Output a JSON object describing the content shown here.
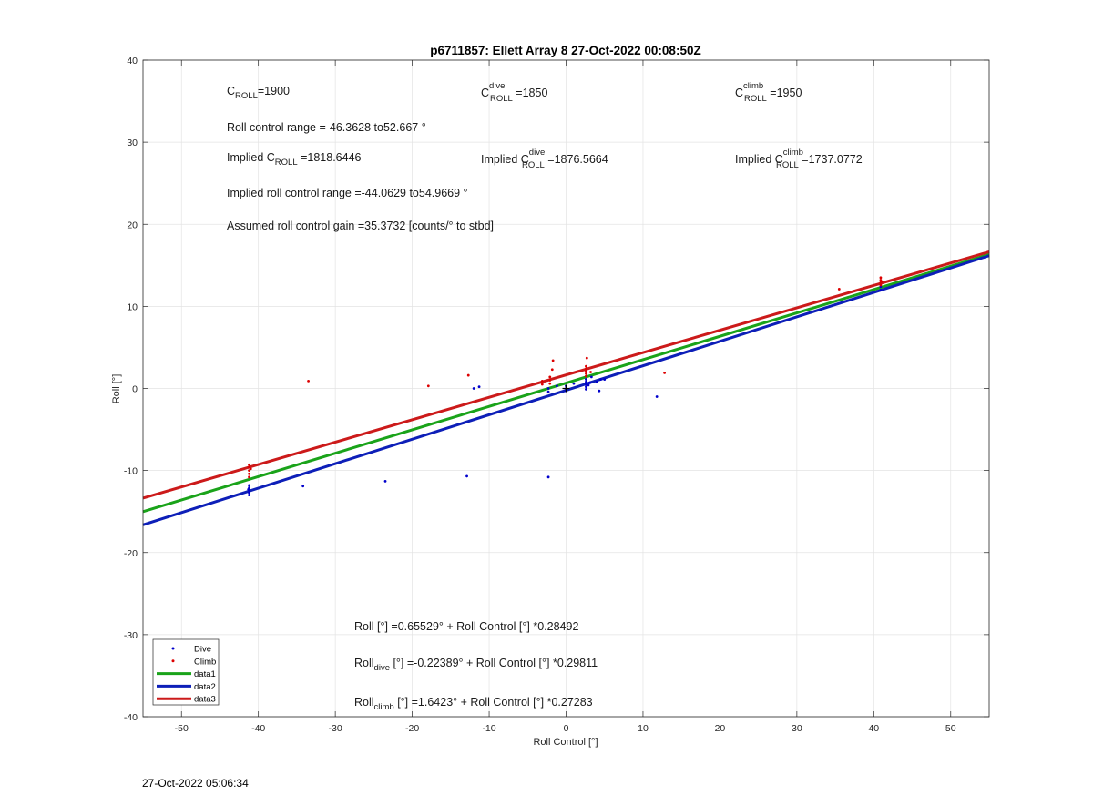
{
  "footer_timestamp": "27-Oct-2022 05:06:34",
  "annotations": {
    "c_roll": {
      "base": "C",
      "sub": "ROLL",
      "value": "=1900"
    },
    "c_roll_dive": {
      "base": "C",
      "sup": "dive",
      "sub": "ROLL",
      "value": " =1850"
    },
    "c_roll_climb": {
      "base": "C",
      "sup": "climb",
      "sub": "ROLL",
      "value": " =1950"
    },
    "roll_range": "Roll control range =-46.3628 to52.667 °",
    "implied_c_roll": {
      "prefix": "Implied C",
      "sub": "ROLL",
      "value": " =1818.6446"
    },
    "implied_c_roll_dive": {
      "prefix": "Implied C",
      "sup": "dive",
      "sub": "ROLL",
      "value": " =1876.5664"
    },
    "implied_c_roll_climb": {
      "prefix": "Implied C",
      "sup": "climb",
      "sub": "ROLL",
      "value": " =1737.0772"
    },
    "implied_range": "Implied roll control range =-44.0629 to54.9669 °",
    "gain": "Assumed roll control gain =35.3732 [counts/° to stbd]",
    "fit_all": "Roll [°] =0.65529° + Roll Control [°] *0.28492",
    "fit_dive": {
      "base": "Roll",
      "sub": "dive",
      "rest": " [°] =-0.22389° + Roll Control [°] *0.29811"
    },
    "fit_climb": {
      "base": "Roll",
      "sub": "climb",
      "rest": " [°] =1.6423° + Roll Control [°] *0.27283"
    }
  },
  "chart_data": {
    "type": "scatter",
    "title": "p6711857: Ellett Array 8 27-Oct-2022 00:08:50Z",
    "xlabel": "Roll Control [°]",
    "ylabel": "Roll [°]",
    "xlim": [
      -55,
      55
    ],
    "ylim": [
      -40,
      40
    ],
    "xticks": [
      -50,
      -40,
      -30,
      -20,
      -10,
      0,
      10,
      20,
      30,
      40,
      50
    ],
    "yticks": [
      -40,
      -30,
      -20,
      -10,
      0,
      10,
      20,
      30,
      40
    ],
    "grid": true,
    "legend_position": "bottom-left",
    "series": [
      {
        "name": "Dive",
        "kind": "points",
        "color": "#0000cc",
        "points": [
          [
            -41.2,
            -11.8
          ],
          [
            -41.2,
            -12.1
          ],
          [
            -41.2,
            -12.4
          ],
          [
            -41.2,
            -12.7
          ],
          [
            -41.2,
            -13.0
          ],
          [
            -41.3,
            -12.3
          ],
          [
            -34.2,
            -11.9
          ],
          [
            -23.5,
            -11.3
          ],
          [
            -12.9,
            -10.7
          ],
          [
            -2.3,
            -10.8
          ],
          [
            -12.0,
            0.0
          ],
          [
            -11.3,
            0.2
          ],
          [
            -2.3,
            0.0
          ],
          [
            -2.3,
            -0.4
          ],
          [
            -1.2,
            0.3
          ],
          [
            0.0,
            0.0
          ],
          [
            0.0,
            -0.3
          ],
          [
            0.0,
            0.3
          ],
          [
            1.0,
            0.6
          ],
          [
            2.6,
            0.2
          ],
          [
            2.6,
            0.5
          ],
          [
            2.6,
            0.8
          ],
          [
            2.6,
            1.1
          ],
          [
            2.6,
            -0.1
          ],
          [
            2.9,
            0.4
          ],
          [
            3.1,
            0.7
          ],
          [
            3.3,
            1.4
          ],
          [
            4.0,
            0.8
          ],
          [
            4.3,
            -0.3
          ],
          [
            4.5,
            1.1
          ],
          [
            5.0,
            1.1
          ],
          [
            11.8,
            -1.0
          ],
          [
            40.9,
            12.0
          ],
          [
            40.9,
            12.4
          ]
        ]
      },
      {
        "name": "Climb",
        "kind": "points",
        "color": "#dd0000",
        "points": [
          [
            -41.2,
            -9.3
          ],
          [
            -41.2,
            -9.6
          ],
          [
            -41.2,
            -10.0
          ],
          [
            -41.2,
            -10.4
          ],
          [
            -41.2,
            -10.8
          ],
          [
            -41.0,
            -9.8
          ],
          [
            -33.5,
            0.9
          ],
          [
            -17.9,
            0.3
          ],
          [
            -12.7,
            1.6
          ],
          [
            -3.1,
            0.5
          ],
          [
            -3.1,
            0.9
          ],
          [
            -2.1,
            0.6
          ],
          [
            -2.1,
            1.0
          ],
          [
            -2.1,
            1.4
          ],
          [
            -1.8,
            2.3
          ],
          [
            -1.7,
            3.4
          ],
          [
            2.6,
            1.8
          ],
          [
            2.6,
            2.1
          ],
          [
            2.6,
            2.4
          ],
          [
            2.6,
            2.7
          ],
          [
            2.6,
            1.5
          ],
          [
            2.7,
            3.7
          ],
          [
            3.2,
            2.0
          ],
          [
            12.8,
            1.9
          ],
          [
            35.5,
            12.1
          ],
          [
            40.9,
            12.6
          ],
          [
            40.9,
            12.9
          ],
          [
            40.9,
            13.2
          ],
          [
            40.9,
            13.5
          ],
          [
            41.0,
            13.0
          ]
        ]
      },
      {
        "name": "data1",
        "kind": "line",
        "color": "#1aa31a",
        "intercept": 0.65529,
        "slope": 0.28492
      },
      {
        "name": "data2",
        "kind": "line",
        "color": "#0d1fb8",
        "intercept": -0.22389,
        "slope": 0.29811
      },
      {
        "name": "data3",
        "kind": "line",
        "color": "#cc1a1a",
        "intercept": 1.6423,
        "slope": 0.27283
      }
    ]
  }
}
